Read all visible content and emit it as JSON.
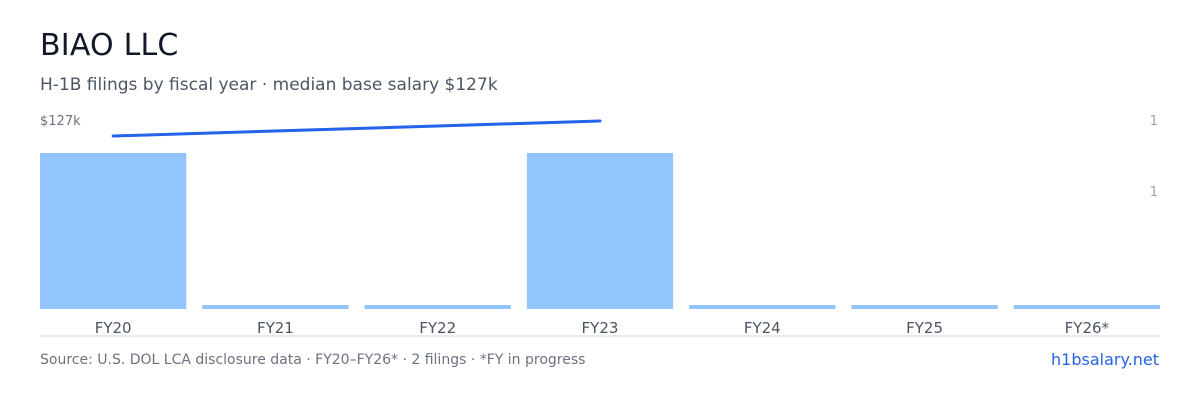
{
  "header": {
    "title": "BIAO LLC",
    "subtitle": "H-1B filings by fiscal year · median base salary $127k"
  },
  "footer": {
    "source": "Source: U.S. DOL LCA disclosure data · FY20–FY26* · 2 filings · *FY in progress",
    "link_label": "h1bsalary.net"
  },
  "colors": {
    "bar": "#93c5fd",
    "line": "#2563eb",
    "axis": "#d1d5db",
    "tick_text": "#4b5563",
    "muted_text": "#6b7280"
  },
  "chart_data": {
    "type": "bar",
    "categories": [
      "FY20",
      "FY21",
      "FY22",
      "FY23",
      "FY24",
      "FY25",
      "FY26*"
    ],
    "series": [
      {
        "type": "bar",
        "values": [
          1,
          0,
          0,
          1,
          0,
          0,
          0
        ]
      },
      {
        "type": "line",
        "x": [
          "FY20",
          "FY23"
        ],
        "values": [
          127,
          127
        ]
      }
    ],
    "left_axis_label": "$127k",
    "right_axis_ticks": [
      "1",
      "1"
    ],
    "ylim": [
      0,
      1
    ]
  }
}
